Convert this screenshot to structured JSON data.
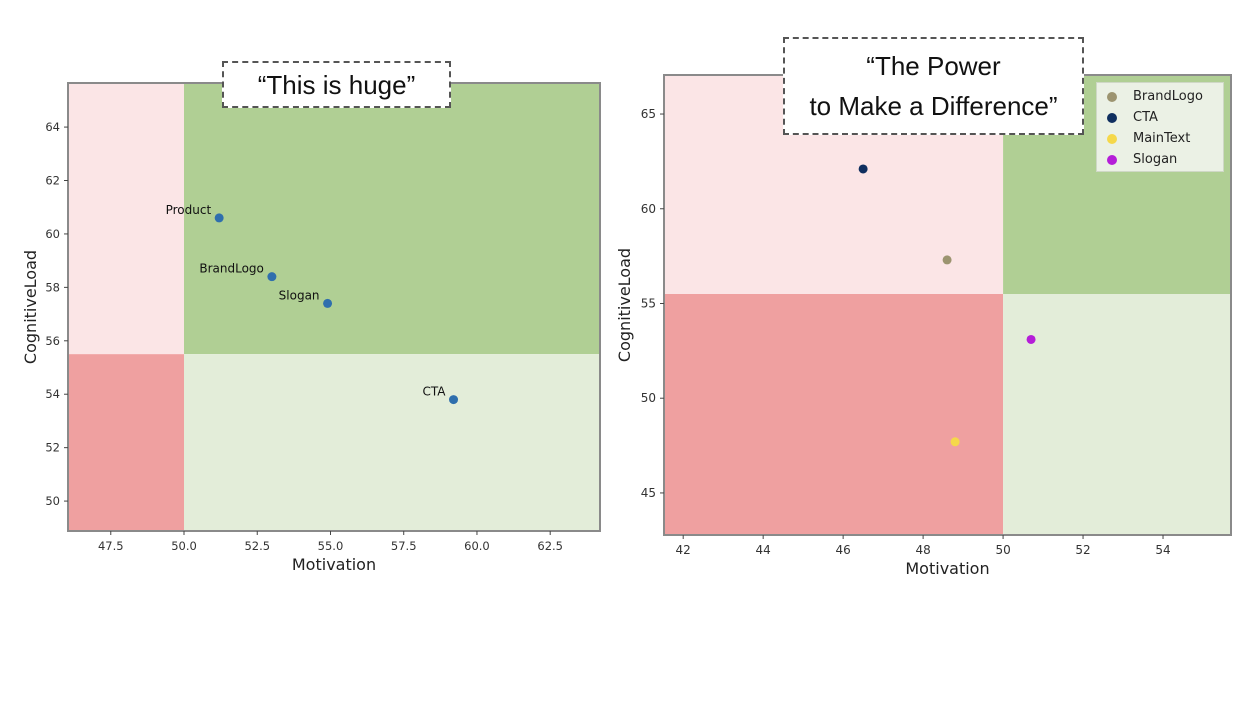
{
  "chart_data": [
    {
      "type": "scatter",
      "title": "“This is huge”",
      "xlabel": "Motivation",
      "ylabel": "CognitiveLoad",
      "xlim": [
        46.04,
        64.2
      ],
      "ylim": [
        48.88,
        65.65
      ],
      "xticks": [
        47.5,
        50.0,
        52.5,
        55.0,
        57.5,
        60.0,
        62.5
      ],
      "xtick_labels": [
        "47.5",
        "50.0",
        "52.5",
        "55.0",
        "57.5",
        "60.0",
        "62.5"
      ],
      "yticks": [
        50,
        52,
        54,
        56,
        58,
        60,
        62,
        64
      ],
      "ytick_labels": [
        "50",
        "52",
        "54",
        "56",
        "58",
        "60",
        "62",
        "64"
      ],
      "quadrant_split": {
        "x": 50,
        "y": 55.5
      },
      "grid": false,
      "legend": null,
      "point_color": "#2f6fad",
      "points": [
        {
          "label": "Product",
          "x": 51.2,
          "y": 60.6
        },
        {
          "label": "BrandLogo",
          "x": 53.0,
          "y": 58.4
        },
        {
          "label": "Slogan",
          "x": 54.9,
          "y": 57.4
        },
        {
          "label": "CTA",
          "x": 59.2,
          "y": 53.8
        }
      ]
    },
    {
      "type": "scatter",
      "title": "“The Power\nto Make a Difference”",
      "xlabel": "Motivation",
      "ylabel": "CognitiveLoad",
      "xlim": [
        41.52,
        55.7
      ],
      "ylim": [
        42.78,
        67.06
      ],
      "xticks": [
        42,
        44,
        46,
        48,
        50,
        52,
        54
      ],
      "xtick_labels": [
        "42",
        "44",
        "46",
        "48",
        "50",
        "52",
        "54"
      ],
      "yticks": [
        45,
        50,
        55,
        60,
        65
      ],
      "ytick_labels": [
        "45",
        "50",
        "55",
        "60",
        "65"
      ],
      "quadrant_split": {
        "x": 50,
        "y": 55.5
      },
      "grid": false,
      "legend": {
        "position": "upper right",
        "entries": [
          "BrandLogo",
          "CTA",
          "MainText",
          "Slogan"
        ]
      },
      "series": [
        {
          "name": "BrandLogo",
          "color": "#9c9470",
          "x": [
            48.6
          ],
          "y": [
            57.3
          ]
        },
        {
          "name": "CTA",
          "color": "#0f2f5f",
          "x": [
            46.5
          ],
          "y": [
            62.1
          ]
        },
        {
          "name": "MainText",
          "color": "#f5d84a",
          "x": [
            48.8
          ],
          "y": [
            47.7
          ]
        },
        {
          "name": "Slogan",
          "color": "#b51ed8",
          "x": [
            50.7
          ],
          "y": [
            53.1
          ]
        }
      ]
    }
  ],
  "colors": {
    "high_cl_low_mot": "#fbe5e6",
    "high_cl_high_mot": "#b0cf94",
    "low_cl_low_mot": "#efa0a0",
    "low_cl_high_mot": "#e3edd9",
    "frame": "#8a8a8a"
  },
  "left_chart": {
    "title": "“This is huge”",
    "xlabel": "Motivation",
    "ylabel": "CognitiveLoad"
  },
  "right_chart": {
    "title": "“The Power\nto Make a Difference”",
    "xlabel": "Motivation",
    "ylabel": "CognitiveLoad",
    "legend": [
      {
        "label": "BrandLogo",
        "color": "#9c9470"
      },
      {
        "label": "CTA",
        "color": "#0f2f5f"
      },
      {
        "label": "MainText",
        "color": "#f5d84a"
      },
      {
        "label": "Slogan",
        "color": "#b51ed8"
      }
    ]
  }
}
